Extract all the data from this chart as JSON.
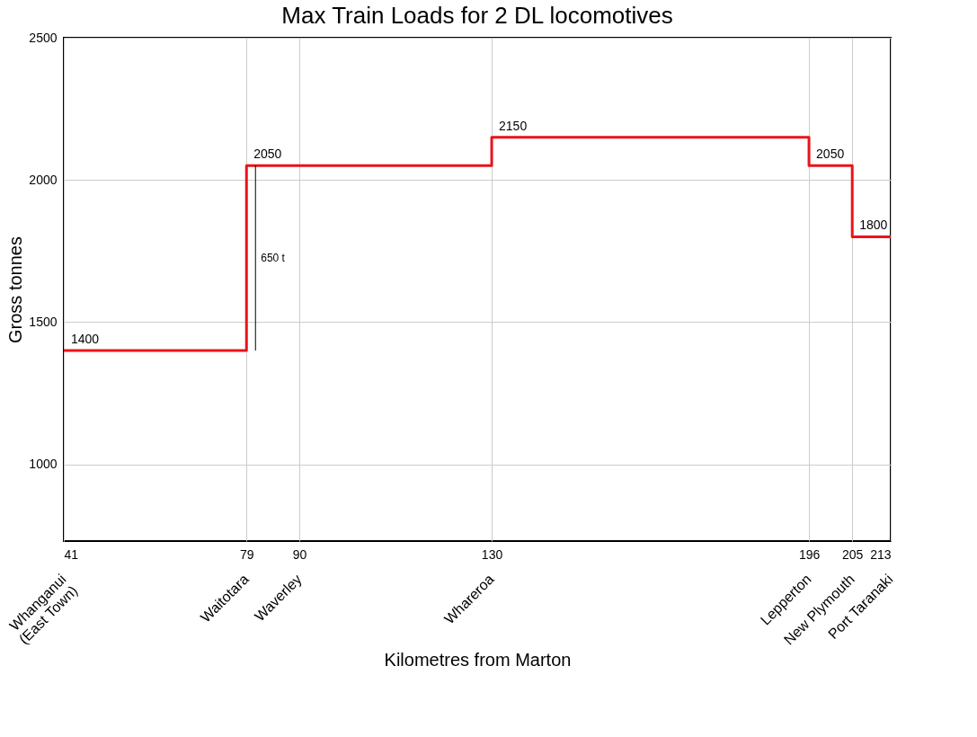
{
  "chart_data": {
    "type": "step",
    "title": "Max Train Loads for 2 DL locomotives",
    "xlabel": "Kilometres from Marton",
    "ylabel": "Gross tonnes",
    "x": [
      41,
      79,
      130,
      196,
      205,
      213
    ],
    "series": [
      {
        "color": "#e8141b",
        "values": [
          1400,
          2050,
          2150,
          2050,
          1800,
          1800
        ]
      }
    ],
    "value_labels": [
      "1400",
      "2050",
      "2150",
      "2050",
      "1800",
      null
    ],
    "xlim": [
      41,
      213
    ],
    "xticks": [
      41,
      79,
      90,
      130,
      196,
      205,
      213
    ],
    "ylim": [
      730,
      2500
    ],
    "yticks": [
      1000,
      1500,
      2000,
      2500
    ],
    "grid": true,
    "annotations": [
      {
        "text": "650 t",
        "x": 79,
        "y": 1725
      },
      "Whanganui\n(East Town)",
      "Waitotara",
      "Waverley",
      "Whareroa",
      "Lepperton",
      "New Plymouth",
      "Port Taranaki"
    ]
  }
}
